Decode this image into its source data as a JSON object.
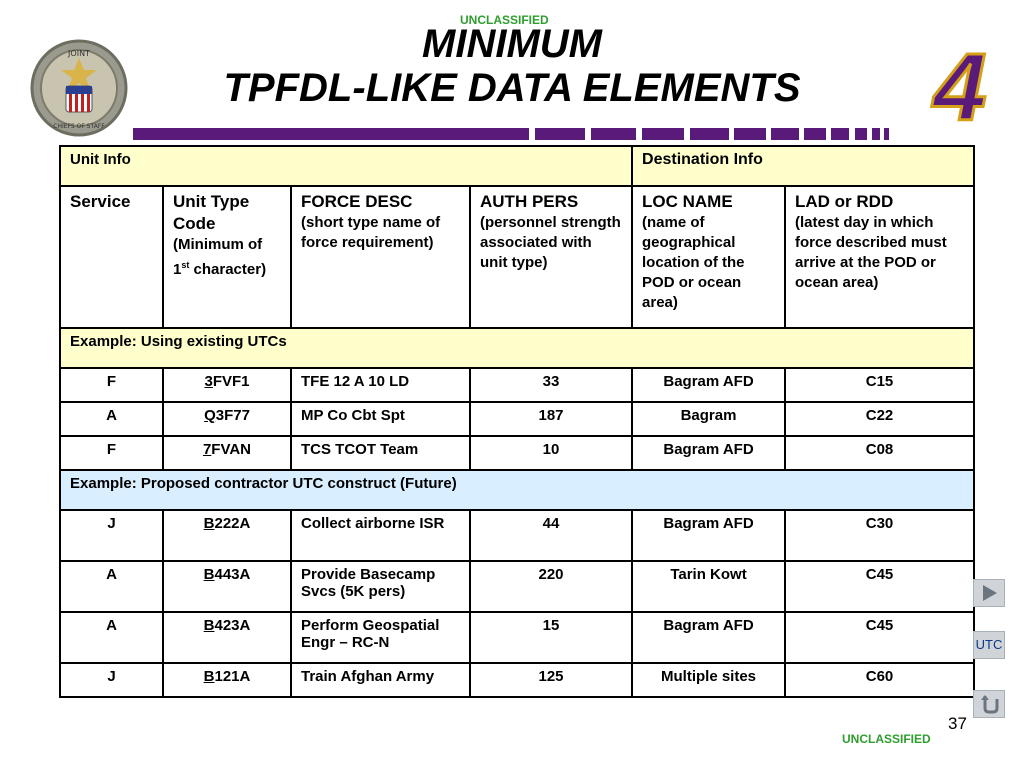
{
  "classification_top": "UNCLASSIFIED",
  "classification_bottom": "UNCLASSIFIED",
  "title_line1": "MINIMUM",
  "title_line2": "TPFDL-LIKE DATA ELEMENTS",
  "logo_glyph": "4",
  "seal_text_top": "JOINT",
  "seal_text_bottom": "CHIEFS OF STAFF",
  "page_number": "37",
  "colors": {
    "purple": "#5a1a7a",
    "yellow_band": "#ffffcc",
    "blue_band": "#d9eeff",
    "classification": "#2e9e2e",
    "logo_gold": "#d4a017"
  },
  "table": {
    "group_unit_info": "Unit Info",
    "group_destination_info": "Destination Info",
    "columns": [
      {
        "title": "Service",
        "sub": ""
      },
      {
        "title": "Unit Type Code",
        "sub": "(Minimum of 1",
        "sup": "st",
        "sub_tail": " character)"
      },
      {
        "title": "FORCE DESC",
        "sub": "(short type name of force requirement)"
      },
      {
        "title": "AUTH PERS",
        "sub": "(personnel strength associated with unit type)"
      },
      {
        "title": "LOC NAME",
        "sub": "(name of geographical location of the POD or ocean area)"
      },
      {
        "title": "LAD or RDD",
        "sub": "(latest day in which force described must arrive at the POD or ocean area)"
      }
    ],
    "example1_label": "Example:  Using existing UTCs",
    "example1_rows": [
      {
        "service": "F",
        "utc_first": "3",
        "utc_rest": "FVF1",
        "force_desc": "TFE 12  A 10 LD",
        "auth_pers": "33",
        "loc_name": "Bagram AFD",
        "lad": "C15"
      },
      {
        "service": "A",
        "utc_first": "Q",
        "utc_rest": "3F77",
        "force_desc": "MP Co Cbt Spt",
        "auth_pers": "187",
        "loc_name": "Bagram",
        "lad": "C22"
      },
      {
        "service": "F",
        "utc_first": "7",
        "utc_rest": "FVAN",
        "force_desc": "TCS TCOT Team",
        "auth_pers": "10",
        "loc_name": "Bagram AFD",
        "lad": "C08"
      }
    ],
    "example2_label": "Example:  Proposed contractor UTC construct (Future)",
    "example2_rows": [
      {
        "service": "J",
        "utc_first": "B",
        "utc_rest": "222A",
        "force_desc": "Collect airborne ISR",
        "auth_pers": "44",
        "loc_name": "Bagram AFD",
        "lad": "C30"
      },
      {
        "service": "A",
        "utc_first": "B",
        "utc_rest": "443A",
        "force_desc": "Provide Basecamp Svcs (5K pers)",
        "auth_pers": "220",
        "loc_name": "Tarin Kowt",
        "lad": "C45"
      },
      {
        "service": "A",
        "utc_first": "B",
        "utc_rest": "423A",
        "force_desc": "Perform Geospatial Engr – RC-N",
        "auth_pers": "15",
        "loc_name": "Bagram AFD",
        "lad": "C45"
      },
      {
        "service": "J",
        "utc_first": "B",
        "utc_rest": "121A",
        "force_desc": "Train Afghan Army",
        "auth_pers": "125",
        "loc_name": "Multiple sites",
        "lad": "C60"
      }
    ]
  },
  "nav": {
    "play_icon": "play-icon",
    "utc_label": "UTC",
    "return_icon": "return-icon"
  }
}
